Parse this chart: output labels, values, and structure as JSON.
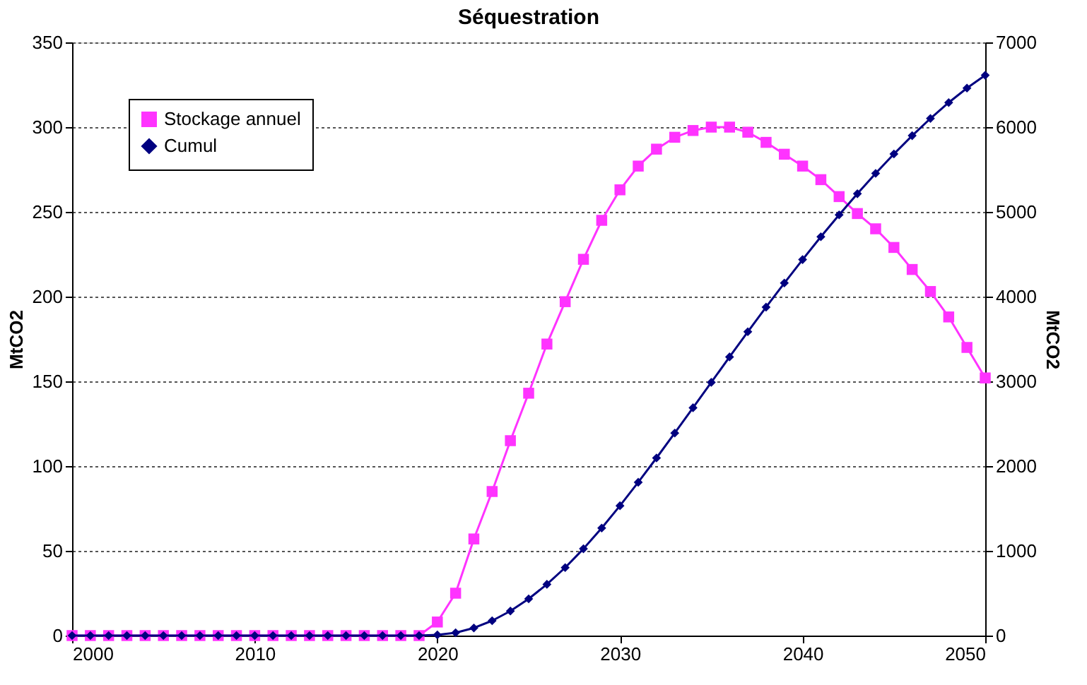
{
  "chart_data": {
    "type": "line",
    "title": "Séquestration",
    "ylabel": "MtCO2",
    "y2label": "MtCO2",
    "x": [
      2000,
      2001,
      2002,
      2003,
      2004,
      2005,
      2006,
      2007,
      2008,
      2009,
      2010,
      2011,
      2012,
      2013,
      2014,
      2015,
      2016,
      2017,
      2018,
      2019,
      2020,
      2021,
      2022,
      2023,
      2024,
      2025,
      2026,
      2027,
      2028,
      2029,
      2030,
      2031,
      2032,
      2033,
      2034,
      2035,
      2036,
      2037,
      2038,
      2039,
      2040,
      2041,
      2042,
      2043,
      2044,
      2045,
      2046,
      2047,
      2048,
      2049,
      2050
    ],
    "series": [
      {
        "name": "Stockage annuel",
        "color": "#ff33ff",
        "marker": "square",
        "values": [
          0,
          0,
          0,
          0,
          0,
          0,
          0,
          0,
          0,
          0,
          0,
          0,
          0,
          0,
          0,
          0,
          0,
          0,
          0,
          0,
          8,
          25,
          57,
          85,
          115,
          143,
          172,
          197,
          222,
          245,
          263,
          277,
          287,
          294,
          298,
          300,
          300,
          297,
          291,
          284,
          277,
          269,
          259,
          249,
          240,
          229,
          216,
          203,
          188,
          170,
          152
        ]
      },
      {
        "name": "Cumul",
        "color": "#000080",
        "marker": "diamond",
        "axis": "y2",
        "values": [
          0,
          0,
          0,
          0,
          0,
          0,
          0,
          0,
          0,
          0,
          0,
          0,
          0,
          0,
          0,
          0,
          0,
          0,
          0,
          0,
          8,
          33,
          90,
          175,
          290,
          433,
          605,
          802,
          1024,
          1269,
          1532,
          1809,
          2096,
          2390,
          2688,
          2988,
          3288,
          3585,
          3876,
          4160,
          4437,
          4706,
          4965,
          5214,
          5454,
          5683,
          5899,
          6102,
          6290,
          6460,
          6612
        ]
      }
    ],
    "xlim": [
      2000,
      2050
    ],
    "xticks": [
      2000,
      2010,
      2020,
      2030,
      2040,
      2050
    ],
    "ylim": [
      0,
      350
    ],
    "yticks": [
      0,
      50,
      100,
      150,
      200,
      250,
      300,
      350
    ],
    "y2lim": [
      0,
      7000
    ],
    "y2ticks": [
      0,
      1000,
      2000,
      3000,
      4000,
      5000,
      6000,
      7000
    ],
    "grid": "y",
    "legend": "top left",
    "line_style": "solid"
  }
}
